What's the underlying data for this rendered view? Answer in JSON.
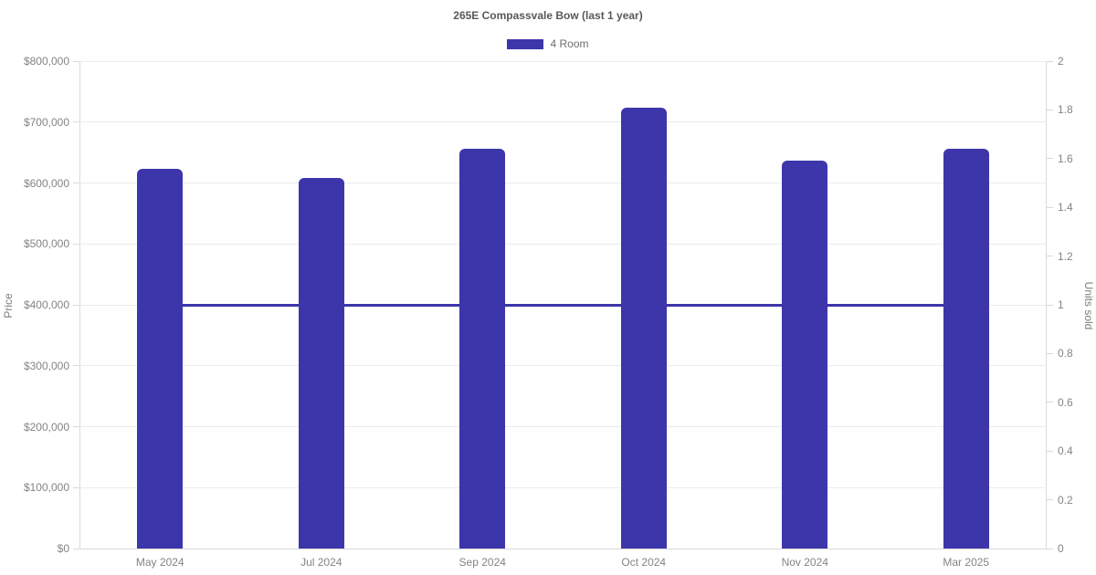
{
  "title": "265E Compassvale Bow (last 1 year)",
  "legend": [
    {
      "label": "4 Room",
      "color": "#3d35aa"
    }
  ],
  "colors": {
    "bar": "#3d35aa",
    "line": "#3d35aa",
    "grid": "#ebebeb",
    "axis": "#d9d9d9",
    "tick_text": "#848484",
    "title_text": "#595959"
  },
  "chart_data": {
    "type": "bar",
    "title": "265E Compassvale Bow (last 1 year)",
    "categories": [
      "May 2024",
      "Jul 2024",
      "Sep 2024",
      "Oct 2024",
      "Nov 2024",
      "Mar 2025"
    ],
    "series": [
      {
        "name": "4 Room",
        "type": "bar",
        "axis": "left",
        "color": "#3d35aa",
        "values": [
          623000,
          608000,
          656000,
          724000,
          637000,
          656000
        ]
      },
      {
        "name": "Units sold",
        "type": "line",
        "axis": "right",
        "color": "#3d35aa",
        "values": [
          1,
          1,
          1,
          1,
          1,
          1
        ]
      }
    ],
    "left_axis": {
      "label": "Price",
      "min": 0,
      "max": 800000,
      "step": 100000,
      "ticks": [
        "$800,000",
        "$700,000",
        "$600,000",
        "$500,000",
        "$400,000",
        "$300,000",
        "$200,000",
        "$100,000",
        "$0"
      ]
    },
    "right_axis": {
      "label": "Units sold",
      "min": 0,
      "max": 2,
      "step": 0.2,
      "ticks": [
        "2",
        "1.8",
        "1.6",
        "1.4",
        "1.2",
        "1",
        "0.8",
        "0.6",
        "0.4",
        "0.2",
        "0"
      ]
    },
    "grid": "horizontal",
    "legend_position": "top"
  }
}
